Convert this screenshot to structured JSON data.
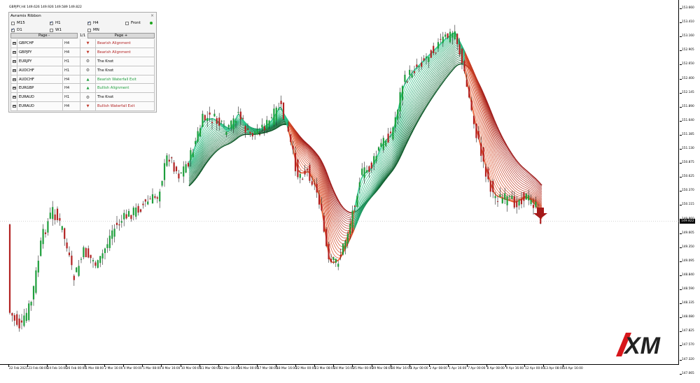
{
  "chart": {
    "symbol_header": "GBPJPY,H4  149.626 149.926 149.589 149.822",
    "current_price": "149.822",
    "price_axis": [
      "153.660",
      "153.410",
      "153.160",
      "152.905",
      "152.650",
      "152.400",
      "152.145",
      "151.890",
      "151.640",
      "151.385",
      "151.130",
      "150.875",
      "150.625",
      "150.370",
      "150.115",
      "149.860",
      "149.605",
      "149.350",
      "149.095",
      "148.840",
      "148.590",
      "148.335",
      "148.080",
      "147.825",
      "147.570",
      "147.320",
      "147.065"
    ],
    "time_axis": [
      "22 Feb 2021",
      "23 Feb 08:00",
      "24 Feb 16:00",
      "26 Feb 00:00",
      "1 Mar 08:00",
      "2 Mar 16:00",
      "4 Mar 00:00",
      "5 Mar 08:00",
      "8 Mar 16:00",
      "10 Mar 00:00",
      "11 Mar 08:00",
      "12 Mar 16:00",
      "16 Mar 00:00",
      "17 Mar 08:00",
      "18 Mar 16:00",
      "22 Mar 00:00",
      "23 Mar 08:00",
      "24 Mar 16:00",
      "25 Mar 00:00",
      "29 Mar 08:00",
      "30 Mar 16:00",
      "1 Apr 00:00",
      "2 Apr 08:00",
      "5 Apr 16:00",
      "7 Apr 00:00",
      "8 Apr 08:00",
      "9 Apr 16:00",
      "12 Apr 00:00",
      "13 Apr 08:00",
      "14 Apr 16:00"
    ],
    "colors": {
      "bull_candle": "#1e9e3c",
      "bear_candle": "#b22222",
      "bull_ribbon": "#2ecc8f",
      "bear_ribbon": "#e8582a",
      "bear_ribbon_dark": "#9e1b1b",
      "bull_ribbon_dark": "#0f5a2a"
    }
  },
  "panel": {
    "title": "Avramis Ribbon",
    "close_glyph": "×",
    "timeframes": [
      {
        "label": "M15",
        "checked": false
      },
      {
        "label": "H1",
        "checked": true
      },
      {
        "label": "H4",
        "checked": true
      },
      {
        "label": "Front",
        "checked": false
      },
      {
        "label": "D1",
        "checked": true
      },
      {
        "label": "W1",
        "checked": false
      },
      {
        "label": "MN",
        "checked": false
      }
    ],
    "page_prev": "Page -",
    "page_indicator": "1/1",
    "page_next": "Page +",
    "rows": [
      {
        "symbol": "GBPCHF",
        "tf": "H4",
        "icon": "arrow-down-icon",
        "signal": "Bearish Alignment",
        "color": "#b22222"
      },
      {
        "symbol": "GBPJPY",
        "tf": "H4",
        "icon": "arrow-down-icon",
        "signal": "Bearish Alignment",
        "color": "#b22222"
      },
      {
        "symbol": "EURJPY",
        "tf": "H1",
        "icon": "knot-icon",
        "signal": "The Knot",
        "color": "#000000"
      },
      {
        "symbol": "AUDCHF",
        "tf": "H1",
        "icon": "knot-icon",
        "signal": "The Knot",
        "color": "#000000"
      },
      {
        "symbol": "AUDCHF",
        "tf": "H4",
        "icon": "arrow-up-icon",
        "signal": "Bearish Waterfall Exit",
        "color": "#1e9e3c"
      },
      {
        "symbol": "EURGBP",
        "tf": "H4",
        "icon": "arrow-up-icon",
        "signal": "Bullish Alignment",
        "color": "#1e9e3c"
      },
      {
        "symbol": "EURAUD",
        "tf": "H1",
        "icon": "knot-icon",
        "signal": "The Knot",
        "color": "#000000"
      },
      {
        "symbol": "EURAUD",
        "tf": "H4",
        "icon": "arrow-down-icon",
        "signal": "Bullish Waterfall Exit",
        "color": "#b22222"
      }
    ]
  },
  "logo": {
    "text": "XM"
  }
}
